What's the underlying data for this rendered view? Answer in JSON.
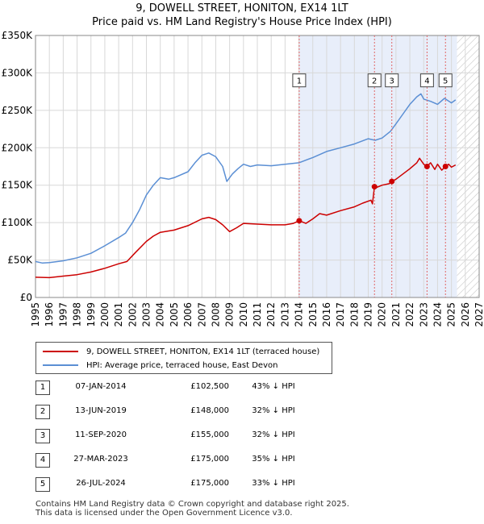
{
  "chart_data": {
    "type": "line",
    "title": "9, DOWELL STREET, HONITON, EX14 1LT",
    "subtitle": "Price paid vs. HM Land Registry's House Price Index (HPI)",
    "xlim": [
      1995,
      2027
    ],
    "ylim": [
      0,
      350000
    ],
    "x_ticks": [
      "1995",
      "1996",
      "1997",
      "1998",
      "1999",
      "2000",
      "2001",
      "2002",
      "2003",
      "2004",
      "2005",
      "2006",
      "2007",
      "2008",
      "2009",
      "2010",
      "2011",
      "2012",
      "2013",
      "2014",
      "2015",
      "2016",
      "2017",
      "2018",
      "2019",
      "2020",
      "2021",
      "2022",
      "2023",
      "2024",
      "2025",
      "2026",
      "2027"
    ],
    "y_ticks": [
      {
        "value": 0,
        "label": "£0"
      },
      {
        "value": 50000,
        "label": "£50K"
      },
      {
        "value": 100000,
        "label": "£100K"
      },
      {
        "value": 150000,
        "label": "£150K"
      },
      {
        "value": 200000,
        "label": "£200K"
      },
      {
        "value": 250000,
        "label": "£250K"
      },
      {
        "value": 300000,
        "label": "£300K"
      },
      {
        "value": 350000,
        "label": "£350K"
      }
    ],
    "shaded_span": [
      2014.02,
      2025.4
    ],
    "hatched_from": 2025.4,
    "series": [
      {
        "name": "9, DOWELL STREET, HONITON, EX14 1LT (terraced house)",
        "color": "#cc0000",
        "points": [
          [
            1995.0,
            27000
          ],
          [
            1996.0,
            26500
          ],
          [
            1997.0,
            28500
          ],
          [
            1998.0,
            30500
          ],
          [
            1999.0,
            34000
          ],
          [
            2000.0,
            39000
          ],
          [
            2001.0,
            45000
          ],
          [
            2001.6,
            48000
          ],
          [
            2002.2,
            60000
          ],
          [
            2003.0,
            75000
          ],
          [
            2003.5,
            82000
          ],
          [
            2004.0,
            87000
          ],
          [
            2005.0,
            90000
          ],
          [
            2006.0,
            96000
          ],
          [
            2007.0,
            105000
          ],
          [
            2007.5,
            107000
          ],
          [
            2008.0,
            104000
          ],
          [
            2008.5,
            97000
          ],
          [
            2009.0,
            88000
          ],
          [
            2009.5,
            93000
          ],
          [
            2010.0,
            99000
          ],
          [
            2011.0,
            98000
          ],
          [
            2012.0,
            97000
          ],
          [
            2013.0,
            97000
          ],
          [
            2013.6,
            99000
          ],
          [
            2014.02,
            102500
          ],
          [
            2014.5,
            99000
          ],
          [
            2015.0,
            105000
          ],
          [
            2015.5,
            112000
          ],
          [
            2016.0,
            110000
          ],
          [
            2017.0,
            116000
          ],
          [
            2018.0,
            121000
          ],
          [
            2018.6,
            126000
          ],
          [
            2019.2,
            130000
          ],
          [
            2019.3,
            125000
          ],
          [
            2019.45,
            148000
          ],
          [
            2019.6,
            147000
          ],
          [
            2020.0,
            150000
          ],
          [
            2020.5,
            152000
          ],
          [
            2020.7,
            155000
          ],
          [
            2021.0,
            158000
          ],
          [
            2021.5,
            165000
          ],
          [
            2022.0,
            172000
          ],
          [
            2022.5,
            180000
          ],
          [
            2022.7,
            186000
          ],
          [
            2023.0,
            178000
          ],
          [
            2023.24,
            175000
          ],
          [
            2023.5,
            180000
          ],
          [
            2023.8,
            171000
          ],
          [
            2024.0,
            178000
          ],
          [
            2024.3,
            170000
          ],
          [
            2024.57,
            175000
          ],
          [
            2024.8,
            178000
          ],
          [
            2025.0,
            174000
          ],
          [
            2025.3,
            177000
          ]
        ]
      },
      {
        "name": "HPI: Average price, terraced house, East Devon",
        "color": "#5b8fd4",
        "points": [
          [
            1995.0,
            48000
          ],
          [
            1995.5,
            46000
          ],
          [
            1996.0,
            46500
          ],
          [
            1997.0,
            49000
          ],
          [
            1998.0,
            53000
          ],
          [
            1999.0,
            59000
          ],
          [
            2000.0,
            69000
          ],
          [
            2001.0,
            80000
          ],
          [
            2001.5,
            86000
          ],
          [
            2002.0,
            100000
          ],
          [
            2002.5,
            117000
          ],
          [
            2003.0,
            137000
          ],
          [
            2003.5,
            150000
          ],
          [
            2004.0,
            160000
          ],
          [
            2004.6,
            158000
          ],
          [
            2005.0,
            160000
          ],
          [
            2006.0,
            168000
          ],
          [
            2006.5,
            180000
          ],
          [
            2007.0,
            190000
          ],
          [
            2007.5,
            193000
          ],
          [
            2008.0,
            188000
          ],
          [
            2008.5,
            175000
          ],
          [
            2008.8,
            155000
          ],
          [
            2009.2,
            165000
          ],
          [
            2009.6,
            172000
          ],
          [
            2010.0,
            178000
          ],
          [
            2010.5,
            175000
          ],
          [
            2011.0,
            177000
          ],
          [
            2012.0,
            176000
          ],
          [
            2013.0,
            178000
          ],
          [
            2014.0,
            180000
          ],
          [
            2015.0,
            187000
          ],
          [
            2016.0,
            195000
          ],
          [
            2017.0,
            200000
          ],
          [
            2018.0,
            205000
          ],
          [
            2019.0,
            212000
          ],
          [
            2019.5,
            210000
          ],
          [
            2020.0,
            213000
          ],
          [
            2020.6,
            222000
          ],
          [
            2021.0,
            232000
          ],
          [
            2021.5,
            245000
          ],
          [
            2022.0,
            258000
          ],
          [
            2022.5,
            268000
          ],
          [
            2022.8,
            272000
          ],
          [
            2023.0,
            265000
          ],
          [
            2023.5,
            262000
          ],
          [
            2024.0,
            258000
          ],
          [
            2024.5,
            266000
          ],
          [
            2025.0,
            260000
          ],
          [
            2025.3,
            264000
          ]
        ]
      }
    ],
    "annotations": [
      {
        "label": "1",
        "x": 2014.02,
        "value": 102500
      },
      {
        "label": "2",
        "x": 2019.45,
        "value": 148000
      },
      {
        "label": "3",
        "x": 2020.7,
        "value": 155000
      },
      {
        "label": "4",
        "x": 2023.24,
        "value": 175000
      },
      {
        "label": "5",
        "x": 2024.57,
        "value": 175000
      }
    ],
    "annotation_level": 290000
  },
  "legend": {
    "property": "9, DOWELL STREET, HONITON, EX14 1LT (terraced house)",
    "hpi": "HPI: Average price, terraced house, East Devon"
  },
  "sales": [
    {
      "num": "1",
      "date": "07-JAN-2014",
      "price": "£102,500",
      "hpi": "43% ↓ HPI"
    },
    {
      "num": "2",
      "date": "13-JUN-2019",
      "price": "£148,000",
      "hpi": "32% ↓ HPI"
    },
    {
      "num": "3",
      "date": "11-SEP-2020",
      "price": "£155,000",
      "hpi": "32% ↓ HPI"
    },
    {
      "num": "4",
      "date": "27-MAR-2023",
      "price": "£175,000",
      "hpi": "35% ↓ HPI"
    },
    {
      "num": "5",
      "date": "26-JUL-2024",
      "price": "£175,000",
      "hpi": "33% ↓ HPI"
    }
  ],
  "footer": {
    "line1": "Contains HM Land Registry data © Crown copyright and database right 2025.",
    "line2": "This data is licensed under the Open Government Licence v3.0."
  },
  "colors": {
    "property": "#cc0000",
    "hpi": "#5b8fd4",
    "shade": "#e8eefa",
    "grid": "#d8d8d8"
  }
}
